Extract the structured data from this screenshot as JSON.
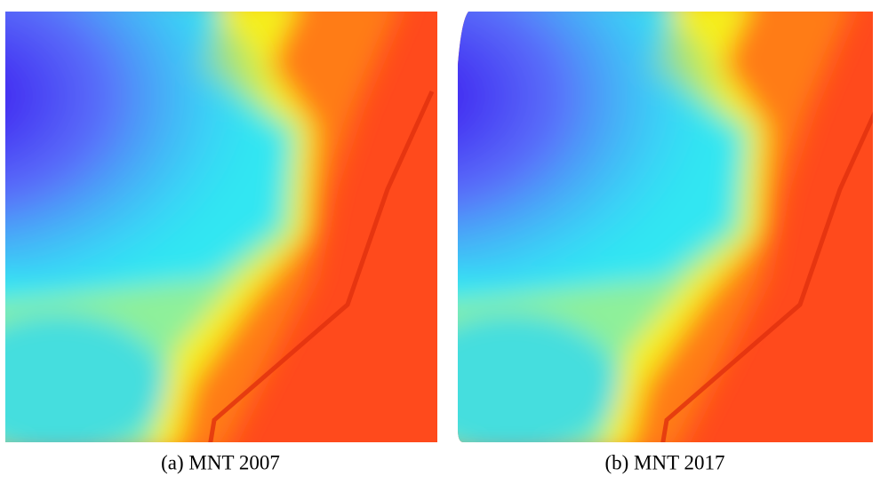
{
  "figure": {
    "panels": [
      {
        "caption": "(a) MNT 2007"
      },
      {
        "caption": "(b) MNT 2017"
      }
    ]
  }
}
